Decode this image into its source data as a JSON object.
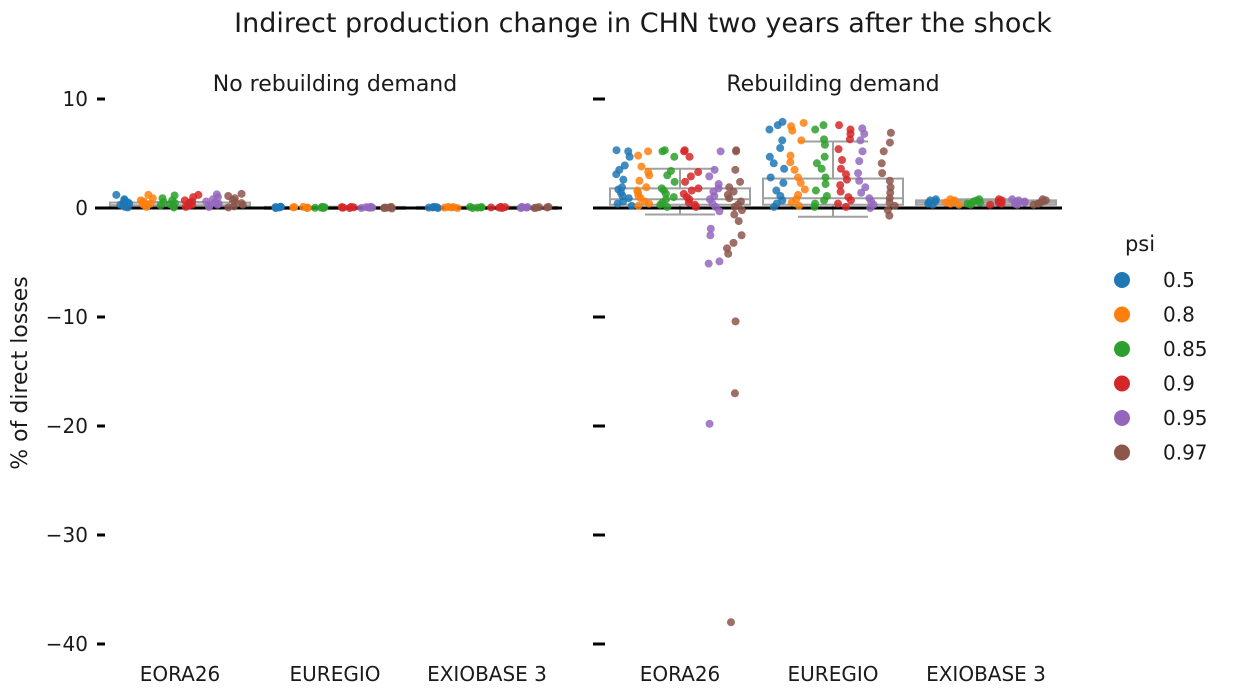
{
  "chart_data": {
    "type": "scatter",
    "subtype": "strip-plot with box plots, two facets",
    "title": "Indirect production change in CHN two years after the shock",
    "ylabel": "% of direct losses",
    "ylim": [
      -41,
      13
    ],
    "yticks": [
      10,
      0,
      -10,
      -20,
      -30,
      -40
    ],
    "ytick_labels": [
      "10",
      "0",
      "−10",
      "−20",
      "−30",
      "−40"
    ],
    "zero_line": true,
    "grid": false,
    "legend": {
      "title": "psi",
      "placement": "right",
      "entries": [
        {
          "label": "0.5",
          "color": "#1f77b4"
        },
        {
          "label": "0.8",
          "color": "#ff7f0e"
        },
        {
          "label": "0.85",
          "color": "#2ca02c"
        },
        {
          "label": "0.9",
          "color": "#d62728"
        },
        {
          "label": "0.95",
          "color": "#9467bd"
        },
        {
          "label": "0.97",
          "color": "#8c564b"
        }
      ]
    },
    "categories": [
      "EORA26",
      "EUREGIO",
      "EXIOBASE 3"
    ],
    "panels": [
      {
        "title": "No rebuilding demand",
        "groups": [
          {
            "category": "EORA26",
            "box": {
              "q1": 0.0,
              "median": 0.25,
              "q3": 0.5,
              "whisker_low": 0.0,
              "whisker_high": 0.55
            },
            "points": {
              "0.5": [
                0.05,
                0.1,
                0.2,
                0.3,
                0.4,
                0.5,
                0.6,
                0.7,
                0.8,
                1.2
              ],
              "0.8": [
                0.1,
                0.2,
                0.3,
                0.4,
                0.5,
                0.6,
                0.7,
                0.9,
                1.2
              ],
              "0.85": [
                0.05,
                0.15,
                0.25,
                0.35,
                0.45,
                0.55,
                0.7,
                0.9,
                1.15
              ],
              "0.9": [
                0.1,
                0.2,
                0.3,
                0.4,
                0.5,
                0.6,
                0.7,
                1.0,
                1.2
              ],
              "0.95": [
                0.1,
                0.2,
                0.3,
                0.4,
                0.5,
                0.6,
                0.8,
                1.0,
                1.25
              ],
              "0.97": [
                0.05,
                0.15,
                0.3,
                0.45,
                0.6,
                0.75,
                0.9,
                1.1,
                1.3
              ]
            }
          },
          {
            "category": "EUREGIO",
            "box": {
              "q1": 0.0,
              "median": 0.05,
              "q3": 0.1,
              "whisker_low": 0.0,
              "whisker_high": 0.12
            },
            "points": {
              "0.5": [
                0.0,
                0.05,
                0.1,
                0.12,
                0.05,
                0.08
              ],
              "0.8": [
                0.0,
                0.04,
                0.08,
                0.1,
                0.06,
                0.02
              ],
              "0.85": [
                0.0,
                0.03,
                0.07,
                0.1,
                0.05,
                0.02
              ],
              "0.9": [
                0.0,
                0.04,
                0.08,
                0.1,
                0.06,
                0.03
              ],
              "0.95": [
                0.0,
                0.05,
                0.08,
                0.11,
                0.04,
                0.02
              ],
              "0.97": [
                -0.05,
                0.0,
                0.05,
                0.1,
                0.04,
                0.02
              ]
            }
          },
          {
            "category": "EXIOBASE 3",
            "box": {
              "q1": 0.0,
              "median": 0.05,
              "q3": 0.1,
              "whisker_low": 0.0,
              "whisker_high": 0.12
            },
            "points": {
              "0.5": [
                0.0,
                0.05,
                0.1,
                0.08,
                0.03
              ],
              "0.8": [
                0.0,
                0.05,
                0.1,
                0.08,
                0.03
              ],
              "0.85": [
                0.0,
                0.05,
                0.1,
                0.08,
                0.03
              ],
              "0.9": [
                0.0,
                0.05,
                0.1,
                0.08,
                0.03
              ],
              "0.95": [
                0.0,
                0.05,
                0.1,
                0.08,
                0.03
              ],
              "0.97": [
                0.0,
                0.05,
                0.1,
                0.08,
                0.03
              ]
            }
          }
        ]
      },
      {
        "title": "Rebuilding demand",
        "groups": [
          {
            "category": "EORA26",
            "box": {
              "q1": 0.3,
              "median": 0.8,
              "q3": 1.8,
              "whisker_low": -0.6,
              "whisker_high": 3.6
            },
            "points": {
              "0.5": [
                0.2,
                0.4,
                0.6,
                0.9,
                1.1,
                1.4,
                1.7,
                1.9,
                2.6,
                3.1,
                3.5,
                3.9,
                4.7,
                5.2,
                5.3
              ],
              "0.8": [
                0.2,
                0.4,
                0.6,
                0.9,
                1.1,
                1.4,
                1.6,
                1.9,
                2.5,
                3.0,
                3.3,
                3.8,
                4.8,
                5.2
              ],
              "0.85": [
                0.1,
                0.3,
                0.5,
                0.8,
                1.0,
                1.3,
                1.6,
                1.8,
                2.4,
                3.0,
                3.4,
                4.7,
                5.2,
                5.3
              ],
              "0.9": [
                0.1,
                0.3,
                0.5,
                0.8,
                1.0,
                1.3,
                1.6,
                1.8,
                2.4,
                2.9,
                3.3,
                4.7,
                5.2,
                5.3
              ],
              "0.95": [
                -0.3,
                0.1,
                0.4,
                0.8,
                1.1,
                1.5,
                1.8,
                2.2,
                2.9,
                3.5,
                5.2,
                -1.9,
                -2.5,
                -4.9,
                -5.1,
                -19.8
              ],
              "0.97": [
                -0.2,
                0.1,
                0.3,
                0.6,
                0.9,
                1.2,
                1.5,
                1.9,
                2.4,
                3.5,
                5.2,
                5.3,
                -0.6,
                -1.2,
                -2.5,
                -3.2,
                -3.7,
                -4.2,
                -10.4,
                -17.0,
                -38.0
              ]
            }
          },
          {
            "category": "EUREGIO",
            "box": {
              "q1": 0.3,
              "median": 0.9,
              "q3": 2.7,
              "whisker_low": -0.8,
              "whisker_high": 6.1
            },
            "points": {
              "0.5": [
                0.1,
                0.4,
                0.7,
                1.1,
                1.6,
                2.3,
                2.8,
                3.6,
                4.1,
                4.7,
                5.5,
                6.2,
                7.2,
                7.6,
                7.9
              ],
              "0.8": [
                0.2,
                0.5,
                0.8,
                1.2,
                1.7,
                2.3,
                2.8,
                3.5,
                4.2,
                4.8,
                6.2,
                7.1,
                7.5,
                7.8
              ],
              "0.85": [
                0.1,
                0.4,
                0.7,
                1.1,
                1.6,
                2.2,
                2.8,
                3.6,
                4.1,
                4.7,
                5.8,
                6.3,
                7.2,
                7.6
              ],
              "0.9": [
                0.1,
                0.4,
                0.7,
                1.0,
                1.5,
                2.1,
                2.6,
                3.1,
                3.6,
                4.4,
                5.4,
                6.3,
                6.8,
                7.2,
                7.6
              ],
              "0.95": [
                0.0,
                0.3,
                0.6,
                0.9,
                1.4,
                1.9,
                2.5,
                3.2,
                4.3,
                5.2,
                6.2,
                6.8,
                7.3
              ],
              "0.97": [
                -0.7,
                -0.2,
                0.2,
                0.5,
                0.9,
                1.4,
                1.9,
                2.5,
                3.2,
                4.1,
                5.2,
                6.0,
                6.9
              ]
            }
          },
          {
            "category": "EXIOBASE 3",
            "box": {
              "q1": 0.3,
              "median": 0.5,
              "q3": 0.7,
              "whisker_low": 0.25,
              "whisker_high": 0.8
            },
            "points": {
              "0.5": [
                0.3,
                0.4,
                0.5,
                0.6,
                0.7,
                0.8
              ],
              "0.8": [
                0.3,
                0.4,
                0.5,
                0.6,
                0.7,
                0.8
              ],
              "0.85": [
                0.3,
                0.4,
                0.5,
                0.6,
                0.7,
                0.8
              ],
              "0.9": [
                0.3,
                0.4,
                0.5,
                0.6,
                0.7,
                0.8
              ],
              "0.95": [
                0.3,
                0.4,
                0.5,
                0.6,
                0.7,
                0.8
              ],
              "0.97": [
                0.3,
                0.4,
                0.5,
                0.6,
                0.7,
                0.8
              ]
            }
          }
        ]
      }
    ]
  }
}
